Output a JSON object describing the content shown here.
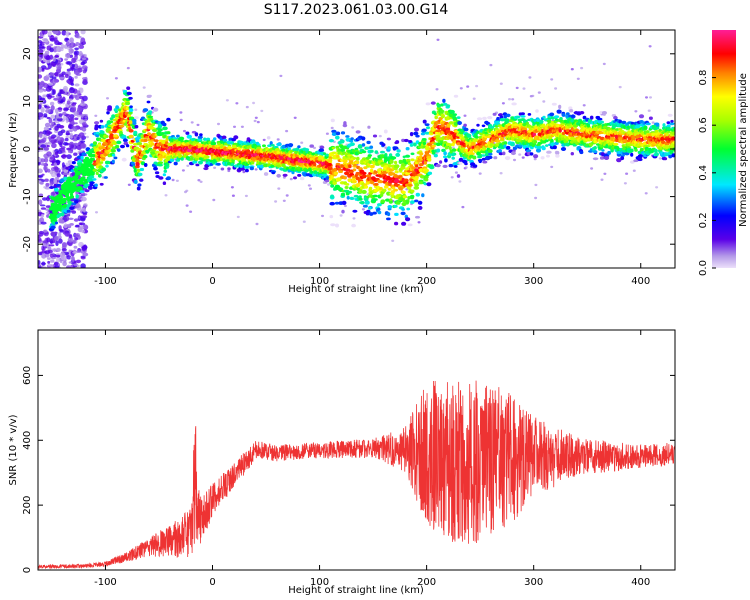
{
  "title": "S117.2023.061.03.00.G14",
  "chart_data": [
    {
      "type": "heatmap",
      "xlabel": "Height of straight line (km)",
      "ylabel": "Frequency (Hz)",
      "xlim": [
        -163,
        432
      ],
      "ylim": [
        -25,
        25
      ],
      "xticks": [
        "-100",
        "0",
        "100",
        "200",
        "300",
        "400"
      ],
      "yticks": [
        "20",
        "10",
        "0",
        "-10",
        "-20"
      ],
      "xtick_values": [
        -100,
        0,
        100,
        200,
        300,
        400
      ],
      "ytick_values": [
        20,
        10,
        0,
        -10,
        -20
      ],
      "colorbar": {
        "label": "Normalized spectral amplitude",
        "range": [
          0,
          1
        ],
        "ticks": [
          "0.0",
          "0.2",
          "0.4",
          "0.6",
          "0.8"
        ],
        "tick_values": [
          0.0,
          0.2,
          0.4,
          0.6,
          0.8
        ],
        "colormap": "rainbow (violet → blue → cyan → green → yellow → red → magenta)"
      },
      "ridge": {
        "x": [
          -150,
          -120,
          -100,
          -90,
          -80,
          -70,
          -60,
          -50,
          -30,
          0,
          50,
          100,
          120,
          150,
          180,
          200,
          210,
          220,
          240,
          260,
          280,
          300,
          320,
          350,
          400,
          432
        ],
        "y": [
          -13,
          -5,
          0,
          4,
          8,
          -3,
          4,
          0,
          0,
          -0.5,
          -1.5,
          -3,
          -4,
          -6,
          -7,
          -2,
          5,
          4,
          0,
          2,
          4,
          3,
          4,
          3,
          2,
          2
        ]
      }
    },
    {
      "type": "line",
      "xlabel": "Height of straight line (km)",
      "ylabel": "SNR (10 * v/v)",
      "xlim": [
        -163,
        432
      ],
      "ylim": [
        0,
        740
      ],
      "xticks": [
        "-100",
        "0",
        "100",
        "200",
        "300",
        "400"
      ],
      "yticks": [
        "600",
        "400",
        "200",
        "0"
      ],
      "xtick_values": [
        -100,
        0,
        100,
        200,
        300,
        400
      ],
      "ytick_values": [
        600,
        400,
        200,
        0
      ],
      "color": "#ee3333",
      "envelope": {
        "x": [
          -163,
          -120,
          -100,
          -80,
          -60,
          -40,
          -20,
          -15,
          -10,
          0,
          20,
          40,
          60,
          100,
          150,
          180,
          200,
          220,
          240,
          260,
          280,
          300,
          340,
          400,
          432
        ],
        "mean": [
          10,
          12,
          18,
          40,
          70,
          90,
          110,
          180,
          150,
          220,
          290,
          370,
          360,
          370,
          375,
          370,
          360,
          340,
          330,
          340,
          340,
          350,
          350,
          350,
          360
        ],
        "noise": [
          6,
          6,
          8,
          15,
          30,
          50,
          80,
          130,
          70,
          50,
          40,
          30,
          25,
          25,
          30,
          70,
          220,
          250,
          260,
          240,
          200,
          130,
          60,
          35,
          35
        ]
      }
    }
  ]
}
